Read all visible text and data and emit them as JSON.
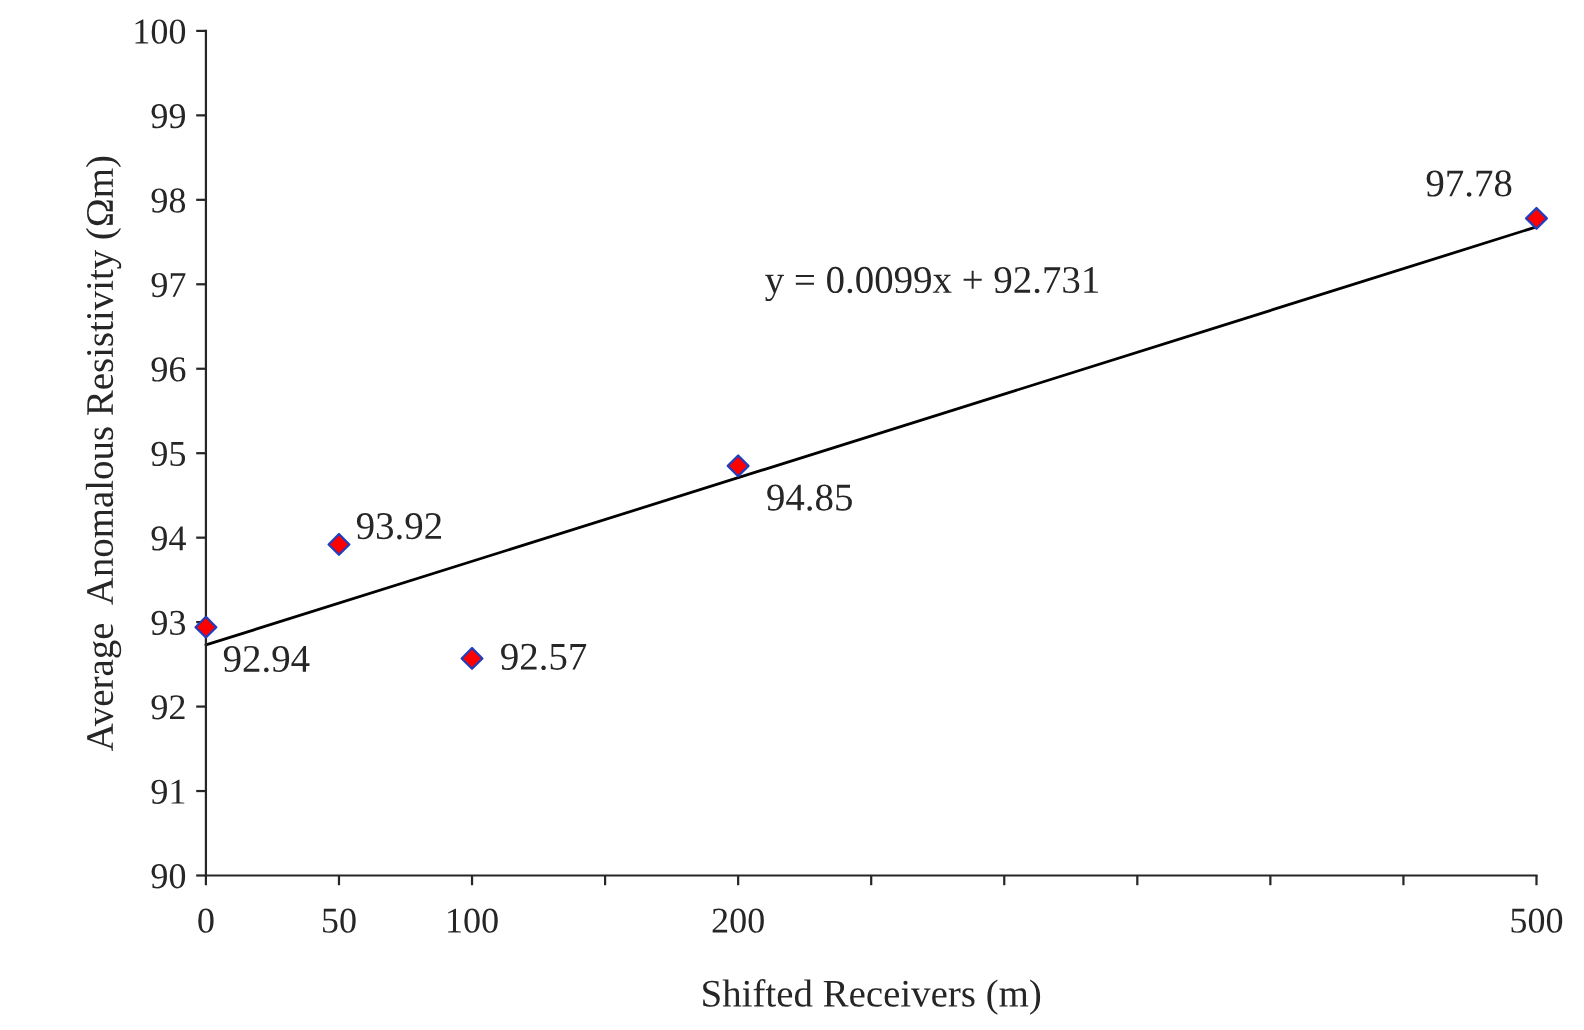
{
  "chart_data": {
    "type": "scatter",
    "xlabel": "Shifted Receivers (m)",
    "ylabel": "Average  Anomalous Resistivity (Ωm)",
    "xlim": [
      0,
      500
    ],
    "ylim": [
      90,
      100
    ],
    "xticks": [
      0,
      50,
      100,
      {
        "value": 150,
        "label": null
      },
      200,
      {
        "value": 250,
        "label": null
      },
      {
        "value": 300,
        "label": null
      },
      {
        "value": 350,
        "label": null
      },
      {
        "value": 400,
        "label": null
      },
      {
        "value": 450,
        "label": null
      },
      500
    ],
    "yticks": [
      90,
      91,
      92,
      93,
      94,
      95,
      96,
      97,
      98,
      99,
      100
    ],
    "grid": false,
    "legend": false,
    "series": [
      {
        "marker": "diamond",
        "color": "#ff0000",
        "x": [
          0,
          50,
          100,
          200,
          500
        ],
        "values": [
          92.94,
          93.92,
          92.57,
          94.85,
          97.78
        ],
        "value_labels": [
          "92.94",
          "93.92",
          "92.57",
          "94.85",
          "97.78"
        ]
      },
      {
        "type": "line",
        "color": "#000000",
        "x": [
          0,
          500
        ],
        "values": [
          92.73,
          97.68
        ]
      }
    ],
    "annotations": [
      "y = 0.0099x + 92.731"
    ]
  }
}
